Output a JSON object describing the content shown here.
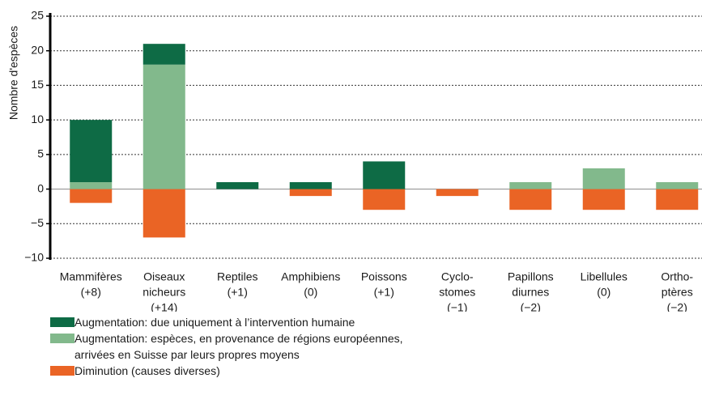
{
  "chart_data": {
    "type": "bar",
    "stacked": true,
    "y_label": "Nombre d'espèces",
    "categories": [
      [
        "Mammifères",
        "(+8)"
      ],
      [
        "Oiseaux",
        "nicheurs",
        "(+14)"
      ],
      [
        "Reptiles",
        "(+1)"
      ],
      [
        "Amphibiens",
        "(0)"
      ],
      [
        "Poissons",
        "(+1)"
      ],
      [
        "Cyclo-",
        "stomes",
        "(−1)"
      ],
      [
        "Papillons",
        "diurnes",
        "(−2)"
      ],
      [
        "Libellules",
        "(0)"
      ],
      [
        "Ortho-",
        "ptères",
        "(−2)"
      ]
    ],
    "series": [
      {
        "name": "Augmentation: due uniquement à l’intervention humaine",
        "color": "#0e6b45",
        "values": [
          9,
          3,
          1,
          1,
          4,
          0,
          0,
          0,
          0
        ]
      },
      {
        "name": "Augmentation: espèces, en provenance de régions européennes, arrivées en Suisse par leurs propres moyens",
        "color": "#82b98c",
        "values": [
          1,
          18,
          0,
          0,
          0,
          0,
          1,
          3,
          1
        ]
      },
      {
        "name": "Diminution (causes diverses)",
        "color": "#ea6425",
        "values": [
          -2,
          -7,
          0,
          -1,
          -3,
          -1,
          -3,
          -3,
          -3
        ]
      }
    ],
    "ylim": [
      -10,
      25
    ],
    "yticks": [
      {
        "value": -10,
        "label": "−10"
      },
      {
        "value": -5,
        "label": "−5"
      },
      0,
      5,
      10,
      15,
      20,
      25
    ],
    "grid": true
  }
}
